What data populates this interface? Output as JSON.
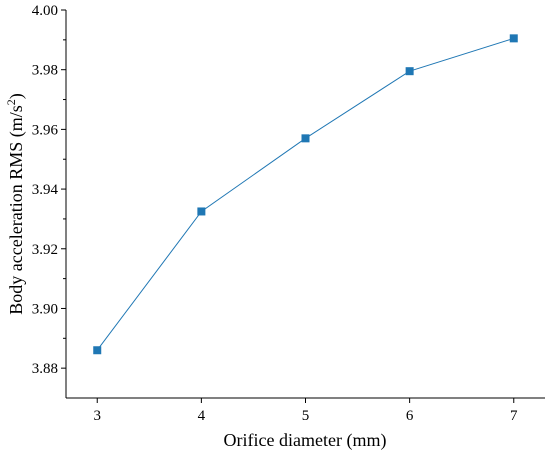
{
  "chart_data": {
    "type": "line",
    "title": "",
    "xlabel": "Orifice diameter (mm)",
    "ylabel": "Body acceleration RMS (m/s",
    "ylabel_sup": "2",
    "ylabel_end": ")",
    "x": [
      3,
      4,
      5,
      6,
      7
    ],
    "y": [
      3.886,
      3.9325,
      3.957,
      3.9795,
      3.9905
    ],
    "xlim": [
      2.7,
      7.3
    ],
    "ylim": [
      3.87,
      4.0
    ],
    "x_ticks": [
      "3",
      "4",
      "5",
      "6",
      "7"
    ],
    "y_ticks": [
      "3.88",
      "3.90",
      "3.92",
      "3.94",
      "3.96",
      "3.98",
      "4.00"
    ],
    "grid": false,
    "legend": "none",
    "marker": "square",
    "color": "#1f77b4"
  }
}
